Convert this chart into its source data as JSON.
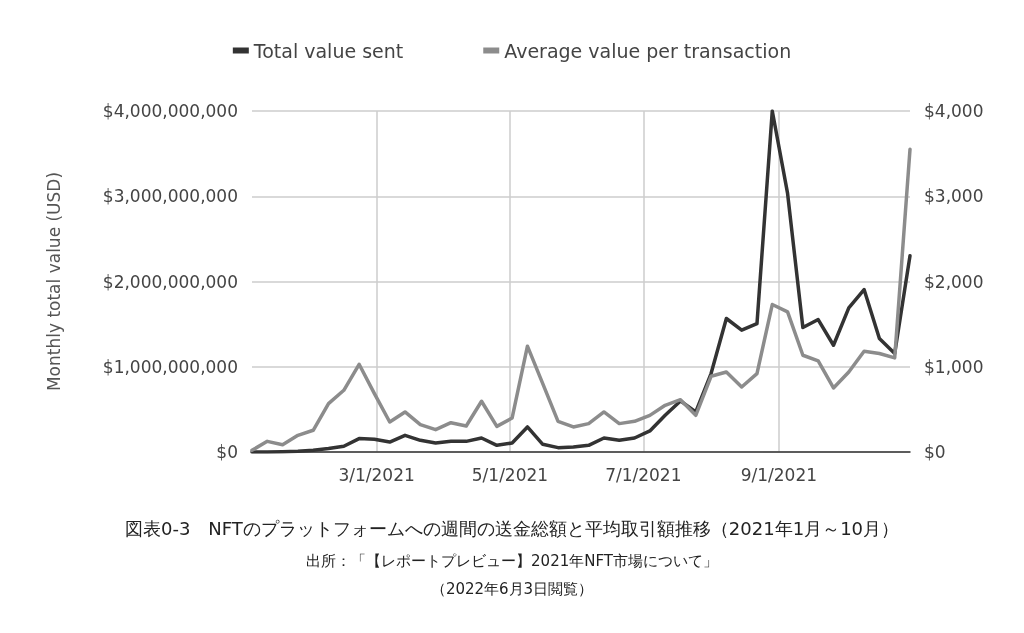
{
  "chart_data": {
    "type": "line",
    "title": "図表0-3　NFTのプラットフォームへの週間の送金総額と平均取引額推移（2021年1月～10月）",
    "annotations": [
      "出所：「【レポートプレビュー】2021年NFT市場について」",
      "（2022年6月3日閲覧）"
    ],
    "ylabel": "Monthly total value (USD)",
    "x": [
      "2021-01-03",
      "2021-01-10",
      "2021-01-17",
      "2021-01-24",
      "2021-01-31",
      "2021-02-07",
      "2021-02-14",
      "2021-02-21",
      "2021-02-28",
      "2021-03-07",
      "2021-03-14",
      "2021-03-21",
      "2021-03-28",
      "2021-04-04",
      "2021-04-11",
      "2021-04-18",
      "2021-04-25",
      "2021-05-02",
      "2021-05-09",
      "2021-05-16",
      "2021-05-23",
      "2021-05-30",
      "2021-06-06",
      "2021-06-13",
      "2021-06-20",
      "2021-06-27",
      "2021-07-04",
      "2021-07-11",
      "2021-07-18",
      "2021-07-25",
      "2021-08-01",
      "2021-08-08",
      "2021-08-15",
      "2021-08-22",
      "2021-08-29",
      "2021-09-05",
      "2021-09-12",
      "2021-09-19",
      "2021-09-26",
      "2021-10-03",
      "2021-10-10",
      "2021-10-17",
      "2021-10-24",
      "2021-10-31"
    ],
    "series": [
      {
        "name": "Total value sent",
        "color": "#333333",
        "values": [
          0,
          0,
          4000000,
          8000000,
          20000000,
          40000000,
          67000000,
          157000000,
          149000000,
          117000000,
          196000000,
          137000000,
          106000000,
          125000000,
          125000000,
          164000000,
          78000000,
          106000000,
          294000000,
          90000000,
          51000000,
          59000000,
          78000000,
          164000000,
          137000000,
          164000000,
          247000000,
          430000000,
          599000000,
          470000000,
          920000000,
          1566000000,
          1429000000,
          1507000000,
          4000000000,
          3033000000,
          1460000000,
          1554000000,
          1252000000,
          1691000000,
          1906000000,
          1331000000,
          1155000000,
          2301000000
        ]
      },
      {
        "name": "Average value per transaction",
        "color": "#8c8c8c",
        "axis": "y2",
        "values": [
          20,
          125,
          86,
          196,
          255,
          568,
          724,
          1029,
          685,
          352,
          470,
          321,
          262,
          344,
          305,
          595,
          301,
          399,
          1241,
          802,
          360,
          294,
          333,
          470,
          333,
          360,
          430,
          548,
          614,
          430,
          888,
          939,
          763,
          920,
          1730,
          1644,
          1135,
          1068,
          751,
          939,
          1182,
          1155,
          1104,
          3550
        ]
      }
    ],
    "xlim": [
      "2021-01-03",
      "2021-10-31"
    ],
    "xticks": [
      {
        "value": "2021-03-01",
        "label": "3/1/2021"
      },
      {
        "value": "2021-05-01",
        "label": "5/1/2021"
      },
      {
        "value": "2021-07-01",
        "label": "7/1/2021"
      },
      {
        "value": "2021-09-01",
        "label": "9/1/2021"
      }
    ],
    "ylim": [
      0,
      4000000000
    ],
    "yticks": [
      {
        "value": 0,
        "label": "$0"
      },
      {
        "value": 1000000000,
        "label": "$1,000,000,000"
      },
      {
        "value": 2000000000,
        "label": "$2,000,000,000"
      },
      {
        "value": 3000000000,
        "label": "$3,000,000,000"
      },
      {
        "value": 4000000000,
        "label": "$4,000,000,000"
      }
    ],
    "y2lim": [
      0,
      4000
    ],
    "y2ticks": [
      {
        "value": 0,
        "label": "$0"
      },
      {
        "value": 1000,
        "label": "$1,000"
      },
      {
        "value": 2000,
        "label": "$2,000"
      },
      {
        "value": 3000,
        "label": "$3,000"
      },
      {
        "value": 4000,
        "label": "$4,000"
      }
    ],
    "grid": true,
    "legend": "top",
    "marker": "none",
    "line_style": "solid"
  }
}
